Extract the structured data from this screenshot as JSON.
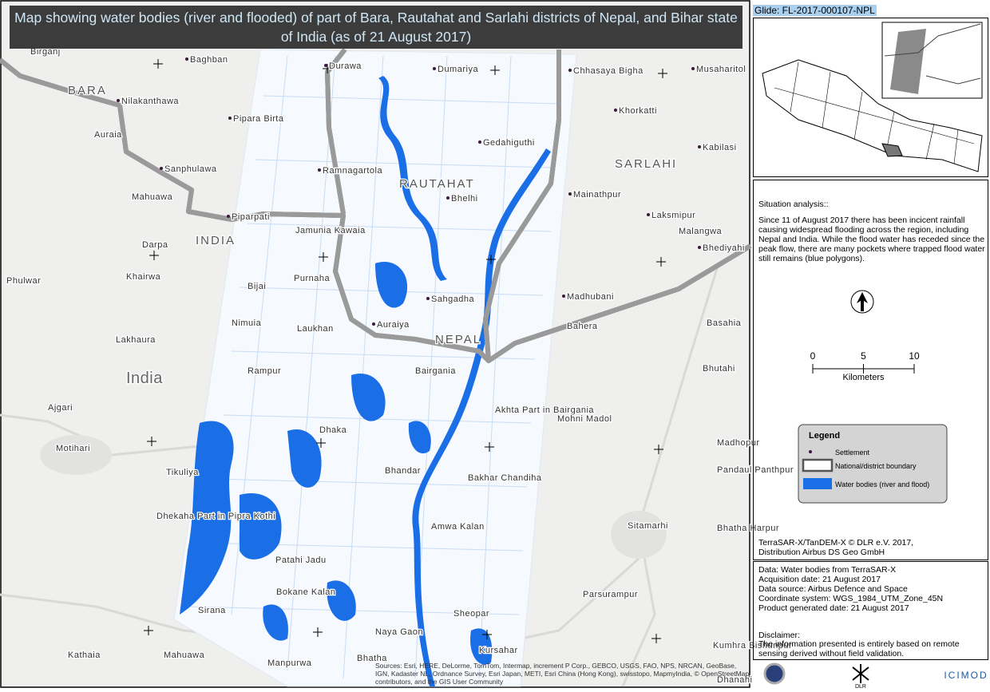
{
  "title": "Map showing water bodies (river and flooded) of part of Bara, Rautahat and Sarlahi districts of Nepal, and Bihar state of India (as of 21 August 2017)",
  "glide": "Glide: FL-2017-000107-NPL",
  "map": {
    "places": [
      "Birganj",
      "Baghban",
      "Durawa",
      "Dumariya",
      "Chhasaya Bigha",
      "Musaharitol",
      "BARA",
      "Nilakanthawa",
      "Pipara Birta",
      "Khorkatti",
      "Auraia",
      "Gedahiguthi",
      "Kabilasi",
      "SARLAHI",
      "Sanphulawa",
      "Ramnagartola",
      "RAUTAHAT",
      "Bhelhi",
      "Mainathpur",
      "Mahuawa",
      "Piparpati",
      "Laksmipur",
      "Malangwa",
      "INDIA",
      "Jamunia Kawaia",
      "Darpa",
      "Bhediyahi",
      "Bijai",
      "Purnaha",
      "Khairwa",
      "Phulwar",
      "Madhubani",
      "Sahgadha",
      "Nimuia",
      "Laukhan",
      "Auraiya",
      "Bahera",
      "Basahia",
      "Lakhaura",
      "NEPAL",
      "Rampur",
      "Bairgania",
      "Bhutahi",
      "India",
      "Ajgari",
      "Akhta Part in Bairgania",
      "Mohni Madol",
      "Motihari",
      "Dhaka",
      "Madhopur",
      "Tikuliya",
      "Bhandar",
      "Bakhar Chandiha",
      "Pandaul Panthpur",
      "Dhekaha Part in Pipra Kothi",
      "Patahi Jadu",
      "Amwa Kalan",
      "Sitamarhi",
      "Bhatha Harpur",
      "Bokane Kalan",
      "Parsurampur",
      "Sirana",
      "Sheopar",
      "Naya Gaon",
      "Kumhra Bishunpur",
      "Kursahar",
      "Kathaia",
      "Mahuawa",
      "Manpurwa",
      "Bhatha",
      "Dhanahi"
    ],
    "attribution": "Sources: Esri, HERE, DeLorme, TomTom, Intermap, increment P Corp., GEBCO, USGS, FAO, NPS, NRCAN, GeoBase, IGN, Kadaster NL, Ordnance Survey, Esri Japan, METI, Esri China (Hong Kong), swisstopo, MapmyIndia, © OpenStreetMap contributors, and the GIS User Community"
  },
  "panel": {
    "situation_heading": "Situation analysis::",
    "situation_text": "Since 11 of August 2017 there has been incicent rainfall causing widespread flooding across the region, including Nepal and India. While the flood water has receded since the peak flow, there are many pockets where trapped flood water still remains (blue polygons).",
    "scale": {
      "ticks": [
        0,
        5,
        10
      ],
      "unit": "Kilometers"
    },
    "legend": {
      "title": "Legend",
      "items": [
        "Settlement",
        "National/district boundary",
        "Water bodies (river and flood)"
      ]
    },
    "credit": [
      "TerraSAR-X/TanDEM-X © DLR e.V. 2017,",
      "Distribution Airbus DS Geo GmbH"
    ],
    "data_lines": [
      "Data: Water bodies from TerraSAR-X",
      "Acquisition date: 21 August 2017",
      "Data source: Airbus Defence and Space",
      "Coordinate system: WGS_1984_UTM_Zone_45N",
      "Product generated date: 21 August 2017"
    ],
    "disclaimer_heading": "Disclaimer:",
    "disclaimer_text": "The information presented is entirely based on remote sensing derived without field validation.",
    "logos": [
      "DLR",
      "ICIMOD"
    ]
  }
}
